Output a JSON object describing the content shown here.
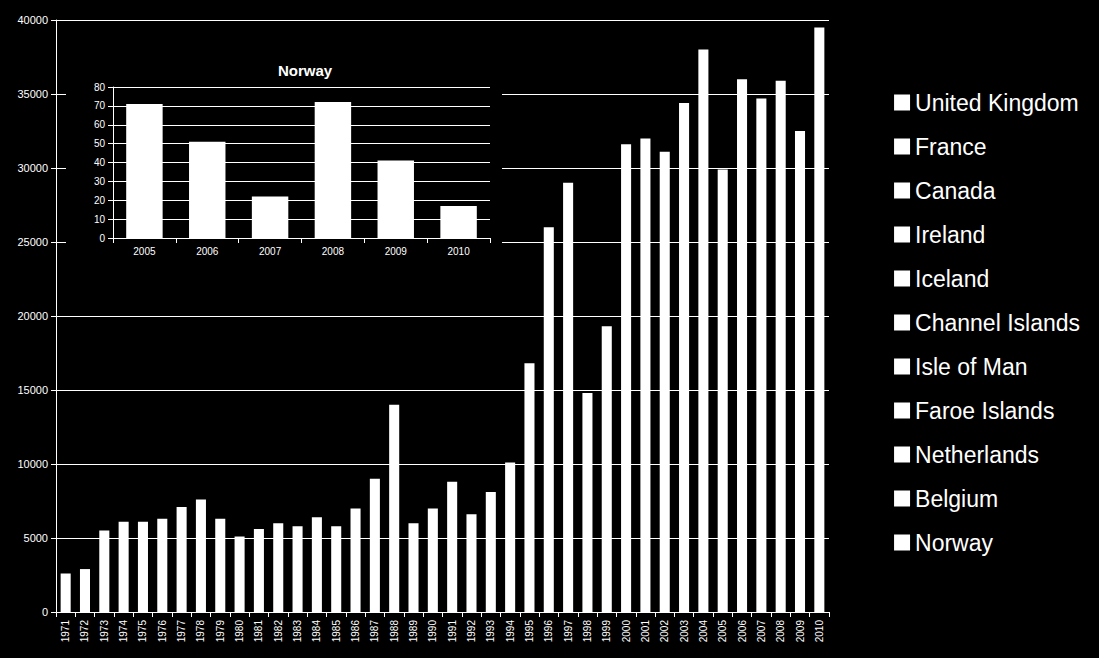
{
  "chart_data": [
    {
      "type": "bar",
      "stacked": true,
      "legend": "right",
      "grid": true,
      "categories": [
        "1971",
        "1972",
        "1973",
        "1974",
        "1975",
        "1976",
        "1977",
        "1978",
        "1979",
        "1980",
        "1981",
        "1982",
        "1983",
        "1984",
        "1985",
        "1986",
        "1987",
        "1988",
        "1989",
        "1990",
        "1991",
        "1992",
        "1993",
        "1994",
        "1995",
        "1996",
        "1997",
        "1998",
        "1999",
        "2000",
        "2001",
        "2002",
        "2003",
        "2004",
        "2005",
        "2006",
        "2007",
        "2008",
        "2009",
        "2010"
      ],
      "series": [
        {
          "name": "United Kingdom",
          "color": "#ffffff",
          "values": [
            2600,
            2900,
            5500,
            6100,
            6100,
            6300,
            7100,
            7600,
            6300,
            5100,
            5600,
            6000,
            5800,
            6400,
            5800,
            7000,
            9000,
            14000,
            6000,
            7000,
            8800,
            6600,
            8100,
            10100,
            16800,
            26000,
            29000,
            14800,
            19300,
            31600,
            32000,
            31100,
            34400,
            38000,
            29900,
            36000,
            34700,
            35900,
            32500,
            39500
          ]
        },
        {
          "name": "France",
          "color": "#ffffff",
          "values": [
            null,
            null,
            null,
            null,
            null,
            null,
            null,
            null,
            null,
            null,
            null,
            null,
            null,
            null,
            null,
            null,
            null,
            null,
            null,
            null,
            null,
            null,
            null,
            null,
            null,
            null,
            null,
            null,
            null,
            null,
            null,
            null,
            null,
            null,
            null,
            null,
            null,
            null,
            null,
            null
          ]
        },
        {
          "name": "Canada",
          "color": "#ffffff",
          "values": [
            null,
            null,
            null,
            null,
            null,
            null,
            null,
            null,
            null,
            null,
            null,
            null,
            null,
            null,
            null,
            null,
            null,
            null,
            null,
            null,
            null,
            null,
            null,
            null,
            null,
            null,
            null,
            null,
            null,
            null,
            null,
            null,
            null,
            null,
            null,
            null,
            null,
            null,
            null,
            null
          ]
        },
        {
          "name": "Ireland",
          "color": "#ffffff",
          "values": [
            null,
            null,
            null,
            null,
            null,
            null,
            null,
            null,
            null,
            null,
            null,
            null,
            null,
            null,
            null,
            null,
            null,
            null,
            null,
            null,
            null,
            null,
            null,
            null,
            null,
            null,
            null,
            null,
            null,
            null,
            null,
            null,
            null,
            null,
            null,
            null,
            null,
            null,
            null,
            null
          ]
        },
        {
          "name": "Iceland",
          "color": "#ffffff",
          "values": [
            null,
            null,
            null,
            null,
            null,
            null,
            null,
            null,
            null,
            null,
            null,
            null,
            null,
            null,
            null,
            null,
            null,
            null,
            null,
            null,
            null,
            null,
            null,
            null,
            null,
            null,
            null,
            null,
            null,
            null,
            null,
            null,
            null,
            null,
            null,
            null,
            null,
            null,
            null,
            null
          ]
        },
        {
          "name": "Channel Islands",
          "color": "#ffffff",
          "values": [
            null,
            null,
            null,
            null,
            null,
            null,
            null,
            null,
            null,
            null,
            null,
            null,
            null,
            null,
            null,
            null,
            null,
            null,
            null,
            null,
            null,
            null,
            null,
            null,
            null,
            null,
            null,
            null,
            null,
            null,
            null,
            null,
            null,
            null,
            null,
            null,
            null,
            null,
            null,
            null
          ]
        },
        {
          "name": "Isle of Man",
          "color": "#ffffff",
          "values": [
            null,
            null,
            null,
            null,
            null,
            null,
            null,
            null,
            null,
            null,
            null,
            null,
            null,
            null,
            null,
            null,
            null,
            null,
            null,
            null,
            null,
            null,
            null,
            null,
            null,
            null,
            null,
            null,
            null,
            null,
            null,
            null,
            null,
            null,
            null,
            null,
            null,
            null,
            null,
            null
          ]
        },
        {
          "name": "Faroe Islands",
          "color": "#ffffff",
          "values": [
            null,
            null,
            null,
            null,
            null,
            null,
            null,
            null,
            null,
            null,
            null,
            null,
            null,
            null,
            null,
            null,
            null,
            null,
            null,
            null,
            null,
            null,
            null,
            null,
            null,
            null,
            null,
            null,
            null,
            null,
            null,
            null,
            null,
            null,
            null,
            null,
            null,
            null,
            null,
            null
          ]
        },
        {
          "name": "Netherlands",
          "color": "#ffffff",
          "values": [
            null,
            null,
            null,
            null,
            null,
            null,
            null,
            null,
            null,
            null,
            null,
            null,
            null,
            null,
            null,
            null,
            null,
            null,
            null,
            null,
            null,
            null,
            null,
            null,
            null,
            null,
            null,
            null,
            null,
            null,
            null,
            null,
            null,
            null,
            null,
            null,
            null,
            null,
            null,
            null
          ]
        },
        {
          "name": "Belgium",
          "color": "#ffffff",
          "values": [
            null,
            null,
            null,
            null,
            null,
            null,
            null,
            null,
            null,
            null,
            null,
            null,
            null,
            null,
            null,
            null,
            null,
            null,
            null,
            null,
            null,
            null,
            null,
            null,
            null,
            null,
            null,
            null,
            null,
            null,
            null,
            null,
            null,
            null,
            null,
            null,
            null,
            null,
            null,
            null
          ]
        },
        {
          "name": "Norway",
          "color": "#ffffff",
          "values": [
            null,
            null,
            null,
            null,
            null,
            null,
            null,
            null,
            null,
            null,
            null,
            null,
            null,
            null,
            null,
            null,
            null,
            null,
            null,
            null,
            null,
            null,
            null,
            null,
            null,
            null,
            null,
            null,
            null,
            null,
            null,
            null,
            null,
            null,
            null,
            null,
            null,
            null,
            null,
            null
          ]
        }
      ],
      "ylim": [
        0,
        40000
      ],
      "yticks": [
        0,
        5000,
        10000,
        15000,
        20000,
        25000,
        30000,
        35000,
        40000
      ]
    },
    {
      "type": "bar",
      "title": "Norway",
      "grid": true,
      "color": "#ffffff",
      "categories": [
        "2005",
        "2006",
        "2007",
        "2008",
        "2009",
        "2010"
      ],
      "values": [
        71,
        51,
        22,
        72,
        41,
        17
      ],
      "ylim": [
        0,
        80
      ],
      "yticks": [
        0,
        10,
        20,
        30,
        40,
        50,
        60,
        70,
        80
      ]
    }
  ]
}
